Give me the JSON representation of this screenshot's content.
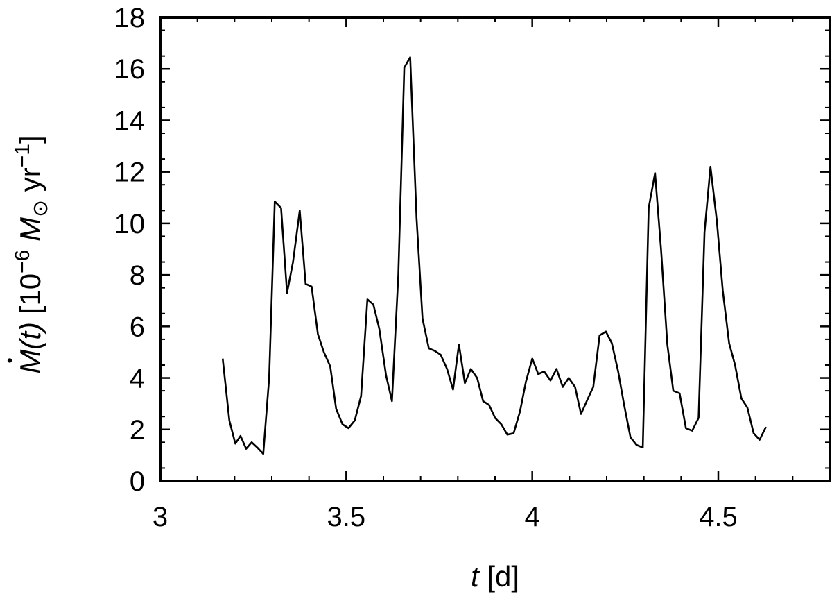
{
  "chart_data": {
    "type": "line",
    "xlabel": {
      "var": "t",
      "unit": "[d]"
    },
    "ylabel": {
      "var": "M(t)",
      "unit_pre": "[10",
      "exp1": "−6",
      "msym": "M",
      "sun": "⊙",
      "yr": " yr",
      "exp2": "−1",
      "close": "]"
    },
    "xlim": [
      3,
      4.8
    ],
    "ylim": [
      0,
      18
    ],
    "x_ticks": [
      3,
      3.5,
      4,
      4.5
    ],
    "x_tick_labels": [
      "3",
      "3.5",
      "4",
      "4.5"
    ],
    "y_ticks": [
      0,
      2,
      4,
      6,
      8,
      10,
      12,
      14,
      16,
      18
    ],
    "y_tick_labels": [
      "0",
      "2",
      "4",
      "6",
      "8",
      "10",
      "12",
      "14",
      "16",
      "18"
    ],
    "grid": false,
    "series": [
      {
        "color": "#000000",
        "points": [
          [
            3.168,
            4.75
          ],
          [
            3.186,
            2.35
          ],
          [
            3.202,
            1.45
          ],
          [
            3.216,
            1.75
          ],
          [
            3.231,
            1.25
          ],
          [
            3.246,
            1.5
          ],
          [
            3.261,
            1.3
          ],
          [
            3.277,
            1.05
          ],
          [
            3.293,
            4.0
          ],
          [
            3.308,
            10.85
          ],
          [
            3.325,
            10.6
          ],
          [
            3.341,
            7.3
          ],
          [
            3.357,
            8.5
          ],
          [
            3.375,
            10.5
          ],
          [
            3.391,
            7.65
          ],
          [
            3.407,
            7.55
          ],
          [
            3.424,
            5.7
          ],
          [
            3.44,
            5.0
          ],
          [
            3.457,
            4.45
          ],
          [
            3.473,
            2.8
          ],
          [
            3.49,
            2.2
          ],
          [
            3.506,
            2.05
          ],
          [
            3.523,
            2.35
          ],
          [
            3.54,
            3.3
          ],
          [
            3.557,
            7.05
          ],
          [
            3.573,
            6.85
          ],
          [
            3.589,
            5.9
          ],
          [
            3.607,
            4.1
          ],
          [
            3.623,
            3.1
          ],
          [
            3.64,
            8.0
          ],
          [
            3.656,
            16.05
          ],
          [
            3.672,
            16.45
          ],
          [
            3.689,
            10.2
          ],
          [
            3.705,
            6.3
          ],
          [
            3.722,
            5.15
          ],
          [
            3.738,
            5.05
          ],
          [
            3.754,
            4.9
          ],
          [
            3.771,
            4.35
          ],
          [
            3.787,
            3.55
          ],
          [
            3.803,
            5.3
          ],
          [
            3.819,
            3.8
          ],
          [
            3.835,
            4.35
          ],
          [
            3.852,
            4.0
          ],
          [
            3.868,
            3.1
          ],
          [
            3.884,
            2.95
          ],
          [
            3.9,
            2.45
          ],
          [
            3.917,
            2.2
          ],
          [
            3.933,
            1.8
          ],
          [
            3.95,
            1.85
          ],
          [
            3.967,
            2.7
          ],
          [
            3.983,
            3.85
          ],
          [
            4.0,
            4.75
          ],
          [
            4.016,
            4.15
          ],
          [
            4.032,
            4.25
          ],
          [
            4.049,
            3.9
          ],
          [
            4.065,
            4.35
          ],
          [
            4.082,
            3.65
          ],
          [
            4.098,
            4.0
          ],
          [
            4.115,
            3.65
          ],
          [
            4.131,
            2.6
          ],
          [
            4.148,
            3.15
          ],
          [
            4.164,
            3.65
          ],
          [
            4.181,
            5.65
          ],
          [
            4.198,
            5.8
          ],
          [
            4.214,
            5.35
          ],
          [
            4.231,
            4.25
          ],
          [
            4.247,
            2.95
          ],
          [
            4.264,
            1.7
          ],
          [
            4.28,
            1.4
          ],
          [
            4.297,
            1.3
          ],
          [
            4.313,
            10.6
          ],
          [
            4.33,
            11.95
          ],
          [
            4.346,
            9.0
          ],
          [
            4.363,
            5.3
          ],
          [
            4.379,
            3.5
          ],
          [
            4.396,
            3.4
          ],
          [
            4.413,
            2.05
          ],
          [
            4.43,
            1.95
          ],
          [
            4.447,
            2.45
          ],
          [
            4.463,
            9.65
          ],
          [
            4.479,
            12.2
          ],
          [
            4.496,
            10.1
          ],
          [
            4.512,
            7.4
          ],
          [
            4.529,
            5.35
          ],
          [
            4.545,
            4.5
          ],
          [
            4.562,
            3.2
          ],
          [
            4.578,
            2.85
          ],
          [
            4.595,
            1.85
          ],
          [
            4.611,
            1.6
          ],
          [
            4.628,
            2.1
          ]
        ]
      }
    ]
  }
}
